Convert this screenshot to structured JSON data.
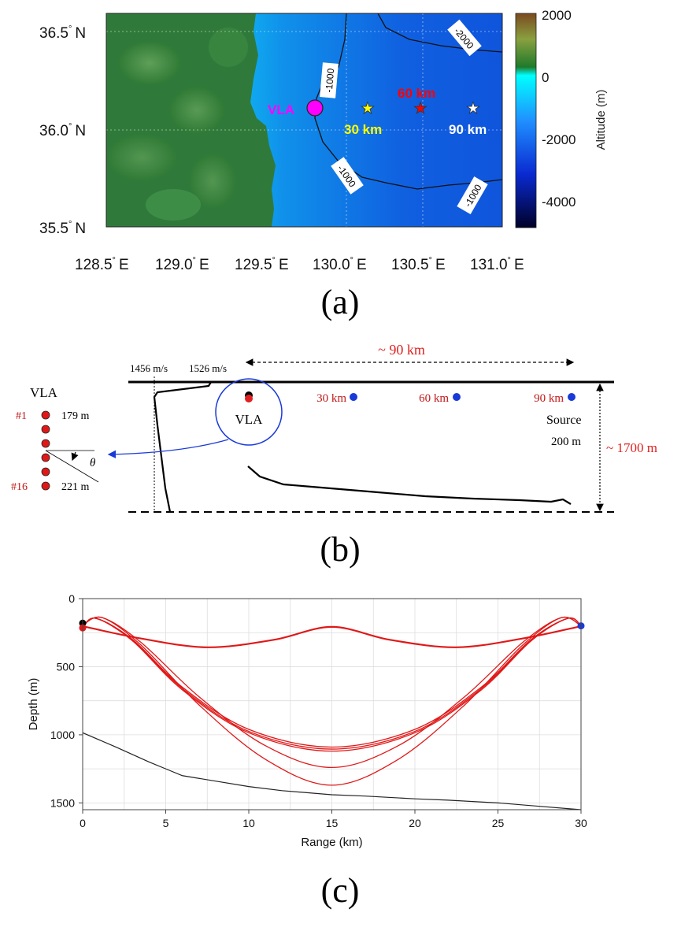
{
  "panel_a": {
    "label": "(a)",
    "lat_labels": [
      "36.5",
      "36.0",
      "35.5"
    ],
    "lat_suffix": "N",
    "lon_labels": [
      "128.5",
      "129.0",
      "129.5",
      "130.0",
      "130.5",
      "131.0"
    ],
    "lon_suffix": "E",
    "degree": "°",
    "contours": [
      "-1000",
      "-2000",
      "-1000",
      "-1000"
    ],
    "vla_label": "VLA",
    "source_labels": [
      "30 km",
      "60 km",
      "90 km"
    ],
    "colorbar_ticks": [
      "2000",
      "0",
      "-2000",
      "-4000"
    ],
    "colorbar_title": "Altitude (m)",
    "colors": {
      "vla": "#ff00ff",
      "s30": "#ffff00",
      "s60": "#ff0000",
      "s90": "#ffffff"
    }
  },
  "panel_b": {
    "label": "(b)",
    "range_label": "~ 90 km",
    "ssp_left": "1456 m/s",
    "ssp_right": "1526 m/s",
    "vla_title": "VLA",
    "elem_first": "#1",
    "elem_last": "#16",
    "depth_first": "179 m",
    "depth_last": "221 m",
    "theta": "θ",
    "circle_label": "VLA",
    "source_labels": [
      "30 km",
      "60 km",
      "90 km"
    ],
    "source_title": "Source",
    "source_depth": "200 m",
    "water_depth": "~ 1700 m"
  },
  "panel_c": {
    "label": "(c)",
    "chart_data": {
      "type": "line",
      "xlabel": "Range (km)",
      "ylabel": "Depth (m)",
      "xlim": [
        0,
        30
      ],
      "ylim": [
        1550,
        0
      ],
      "xticks": [
        0,
        5,
        10,
        15,
        20,
        25,
        30
      ],
      "yticks": [
        0,
        500,
        1000,
        1500
      ],
      "grid": true,
      "bathymetry": {
        "x": [
          0,
          2,
          4,
          5,
          6,
          8,
          10,
          12,
          14,
          15,
          17,
          20,
          22,
          25,
          27,
          30
        ],
        "y": [
          985,
          1090,
          1200,
          1250,
          1300,
          1340,
          1380,
          1410,
          1430,
          1440,
          1450,
          1470,
          1480,
          1500,
          1520,
          1550
        ]
      },
      "rays": [
        {
          "x": [
            0,
            3.5,
            7.5,
            11.5,
            15,
            18.5,
            22.5,
            26.5,
            30
          ],
          "y": [
            200,
            290,
            355,
            300,
            205,
            300,
            355,
            290,
            200
          ]
        },
        {
          "x": [
            0,
            3.5,
            7.5,
            11.5,
            15,
            18.5,
            22.5,
            26.5,
            30
          ],
          "y": [
            205,
            295,
            360,
            305,
            210,
            305,
            360,
            295,
            205
          ]
        },
        {
          "x": [
            0,
            0.8,
            3,
            6,
            10,
            15,
            20,
            24,
            27,
            29.2,
            30
          ],
          "y": [
            215,
            145,
            300,
            650,
            960,
            1090,
            960,
            650,
            300,
            145,
            200
          ]
        },
        {
          "x": [
            0,
            0.8,
            3,
            6,
            10,
            15,
            20,
            24,
            27,
            29.2,
            30
          ],
          "y": [
            215,
            145,
            305,
            660,
            975,
            1105,
            975,
            660,
            305,
            145,
            200
          ]
        },
        {
          "x": [
            0,
            0.8,
            3,
            6,
            10,
            15,
            20,
            24,
            27,
            29.2,
            30
          ],
          "y": [
            215,
            145,
            310,
            670,
            985,
            1120,
            985,
            670,
            310,
            145,
            200
          ]
        },
        {
          "x": [
            0,
            1.2,
            3.5,
            7,
            11,
            15,
            19,
            23,
            26.5,
            28.8,
            30
          ],
          "y": [
            190,
            140,
            320,
            720,
            1080,
            1240,
            1080,
            720,
            320,
            140,
            200
          ]
        },
        {
          "x": [
            0,
            1.2,
            3.5,
            7,
            11,
            15,
            19,
            23,
            26.5,
            28.8,
            30
          ],
          "y": [
            195,
            140,
            340,
            780,
            1180,
            1370,
            1180,
            780,
            340,
            140,
            200
          ]
        }
      ],
      "receivers": [
        {
          "x": 0,
          "y": 180
        },
        {
          "x": 0,
          "y": 215
        }
      ],
      "source": {
        "x": 30,
        "y": 200
      }
    }
  }
}
